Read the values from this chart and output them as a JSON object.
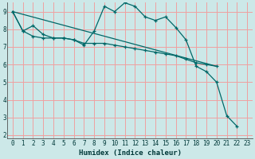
{
  "xlabel": "Humidex (Indice chaleur)",
  "background_color": "#cce8e8",
  "grid_color": "#f0a0a0",
  "line_color": "#006868",
  "xlim": [
    -0.5,
    23.5
  ],
  "ylim": [
    1.8,
    9.5
  ],
  "xticks": [
    0,
    1,
    2,
    3,
    4,
    5,
    6,
    7,
    8,
    9,
    10,
    11,
    12,
    13,
    14,
    15,
    16,
    17,
    18,
    19,
    20,
    21,
    22,
    23
  ],
  "yticks": [
    2,
    3,
    4,
    5,
    6,
    7,
    8,
    9
  ],
  "line1_x": [
    0,
    1,
    2,
    3,
    4,
    5,
    6,
    7,
    8,
    9,
    10,
    11,
    12,
    13,
    14,
    15,
    16,
    17,
    18,
    19,
    20,
    21,
    22,
    23
  ],
  "line1_y": [
    9.0,
    7.9,
    8.2,
    7.7,
    7.5,
    7.5,
    7.4,
    7.1,
    7.9,
    9.3,
    9.0,
    9.5,
    9.3,
    8.7,
    8.5,
    8.7,
    8.1,
    7.4,
    5.9,
    5.6,
    5.0,
    3.1,
    2.5,
    null
  ],
  "line2_x": [
    0,
    20
  ],
  "line2_y": [
    9.0,
    5.9
  ],
  "line3_x": [
    0,
    1,
    2,
    3,
    4,
    5,
    6,
    7,
    8,
    9,
    10,
    11,
    12,
    13,
    14,
    15,
    16,
    17,
    18,
    19,
    20
  ],
  "line3_y": [
    9.0,
    7.9,
    7.6,
    7.5,
    7.5,
    7.5,
    7.4,
    7.2,
    7.2,
    7.2,
    7.1,
    7.0,
    6.9,
    6.8,
    6.7,
    6.6,
    6.5,
    6.3,
    6.1,
    6.0,
    5.9
  ]
}
